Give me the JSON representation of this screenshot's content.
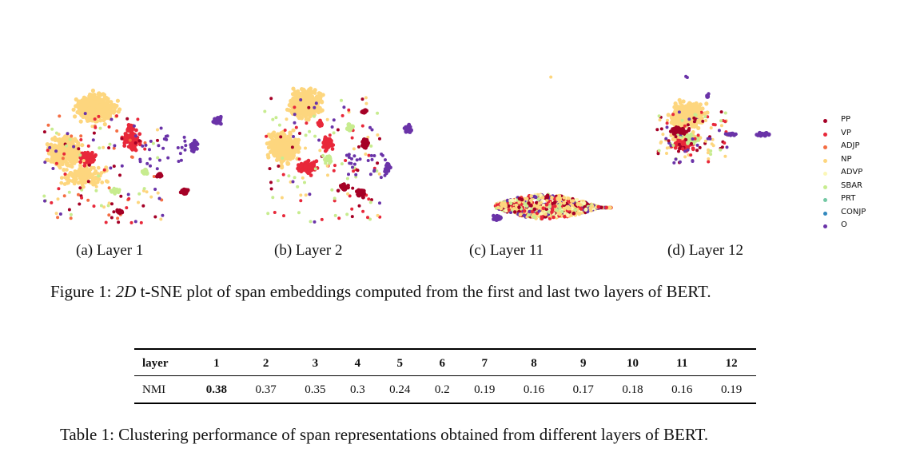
{
  "figure": {
    "panels": [
      {
        "id": "a",
        "caption": "(a) Layer 1"
      },
      {
        "id": "b",
        "caption": "(b) Layer 2"
      },
      {
        "id": "c",
        "caption": "(c) Layer 11"
      },
      {
        "id": "d",
        "caption": "(d) Layer 12"
      }
    ],
    "legend": [
      {
        "label": "PP",
        "color": "#a50026"
      },
      {
        "label": "VP",
        "color": "#e8283a"
      },
      {
        "label": "ADJP",
        "color": "#f46d43"
      },
      {
        "label": "NP",
        "color": "#fdd67e"
      },
      {
        "label": "ADVP",
        "color": "#fbf7b8"
      },
      {
        "label": "SBAR",
        "color": "#c7ec8f"
      },
      {
        "label": "PRT",
        "color": "#73c8a4"
      },
      {
        "label": "CONJP",
        "color": "#3288bd"
      },
      {
        "label": "O",
        "color": "#6a33a8"
      }
    ],
    "caption_prefix": "Figure 1: ",
    "caption_math": "2D",
    "caption_rest": " t-SNE plot of span embeddings computed from the first and last two layers of BERT."
  },
  "table": {
    "header": [
      "layer",
      "1",
      "2",
      "3",
      "4",
      "5",
      "6",
      "7",
      "8",
      "9",
      "10",
      "11",
      "12"
    ],
    "row_label": "NMI",
    "values": [
      "0.38",
      "0.37",
      "0.35",
      "0.3",
      "0.24",
      "0.2",
      "0.19",
      "0.16",
      "0.17",
      "0.18",
      "0.16",
      "0.19"
    ],
    "best_index": 0,
    "caption": "Table 1: Clustering performance of span representations obtained from different layers of BERT."
  }
}
